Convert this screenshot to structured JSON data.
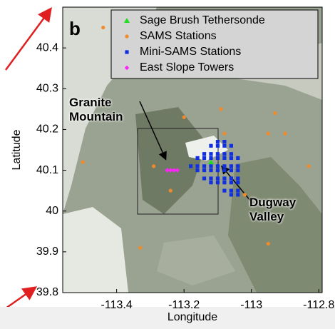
{
  "chart_data": {
    "type": "scatter",
    "panel_label": "b",
    "xlabel": "Longitude",
    "ylabel": "Latitude",
    "xlim": [
      -113.56,
      -112.79
    ],
    "ylim": [
      39.8,
      40.5
    ],
    "xticks": [
      -113.4,
      -113.2,
      -113,
      -112.8
    ],
    "yticks": [
      39.8,
      39.9,
      40,
      40.1,
      40.2,
      40.3,
      40.4
    ],
    "legend": "upper right",
    "annotations": [
      "Granite Mountain",
      "Dugway Valley"
    ],
    "series": [
      {
        "name": "Sage Brush Tethersonde",
        "color": "#22dd22",
        "marker": "triangle",
        "x": [
          -113.12
        ],
        "y": [
          40.12
        ]
      },
      {
        "name": "SAMS Stations",
        "color": "#f08a2a",
        "marker": "circle",
        "x": [
          -113.44,
          -113.5,
          -113.29,
          -113.33,
          -113.24,
          -113.2,
          -113.09,
          -113.08,
          -112.93,
          -112.95,
          -112.9,
          -112.83,
          -112.95,
          -113.02
        ],
        "y": [
          40.45,
          40.12,
          40.11,
          39.91,
          40.05,
          40.23,
          40.25,
          40.19,
          40.24,
          40.19,
          40.19,
          40.11,
          39.92,
          40.04
        ]
      },
      {
        "name": "Mini-SAMS Stations",
        "color": "#1030e0",
        "marker": "square",
        "x": [
          -113.1,
          -113.08,
          -113.12,
          -113.1,
          -113.08,
          -113.06,
          -113.14,
          -113.12,
          -113.1,
          -113.08,
          -113.06,
          -113.16,
          -113.14,
          -113.12,
          -113.1,
          -113.08,
          -113.06,
          -113.04,
          -113.18,
          -113.16,
          -113.14,
          -113.12,
          -113.1,
          -113.08,
          -113.06,
          -113.04,
          -113.16,
          -113.14,
          -113.12,
          -113.1,
          -113.08,
          -113.06,
          -113.04,
          -113.14,
          -113.12,
          -113.1,
          -113.08,
          -113.06,
          -113.04,
          -113.12,
          -113.1,
          -113.08,
          -113.06,
          -113.04,
          -113.08,
          -113.06,
          -113.04,
          -113.06,
          -113.04
        ],
        "y": [
          40.17,
          40.17,
          40.16,
          40.16,
          40.16,
          40.16,
          40.14,
          40.14,
          40.14,
          40.14,
          40.14,
          40.13,
          40.13,
          40.13,
          40.13,
          40.13,
          40.13,
          40.13,
          40.11,
          40.11,
          40.11,
          40.11,
          40.11,
          40.11,
          40.11,
          40.11,
          40.1,
          40.1,
          40.1,
          40.1,
          40.1,
          40.1,
          40.1,
          40.08,
          40.08,
          40.08,
          40.08,
          40.08,
          40.08,
          40.07,
          40.07,
          40.07,
          40.07,
          40.07,
          40.05,
          40.05,
          40.05,
          40.04,
          40.04
        ]
      },
      {
        "name": "East Slope Towers",
        "color": "#ff22ff",
        "marker": "diamond",
        "x": [
          -113.25,
          -113.24,
          -113.23,
          -113.22
        ],
        "y": [
          40.1,
          40.1,
          40.1,
          40.1
        ]
      }
    ]
  }
}
